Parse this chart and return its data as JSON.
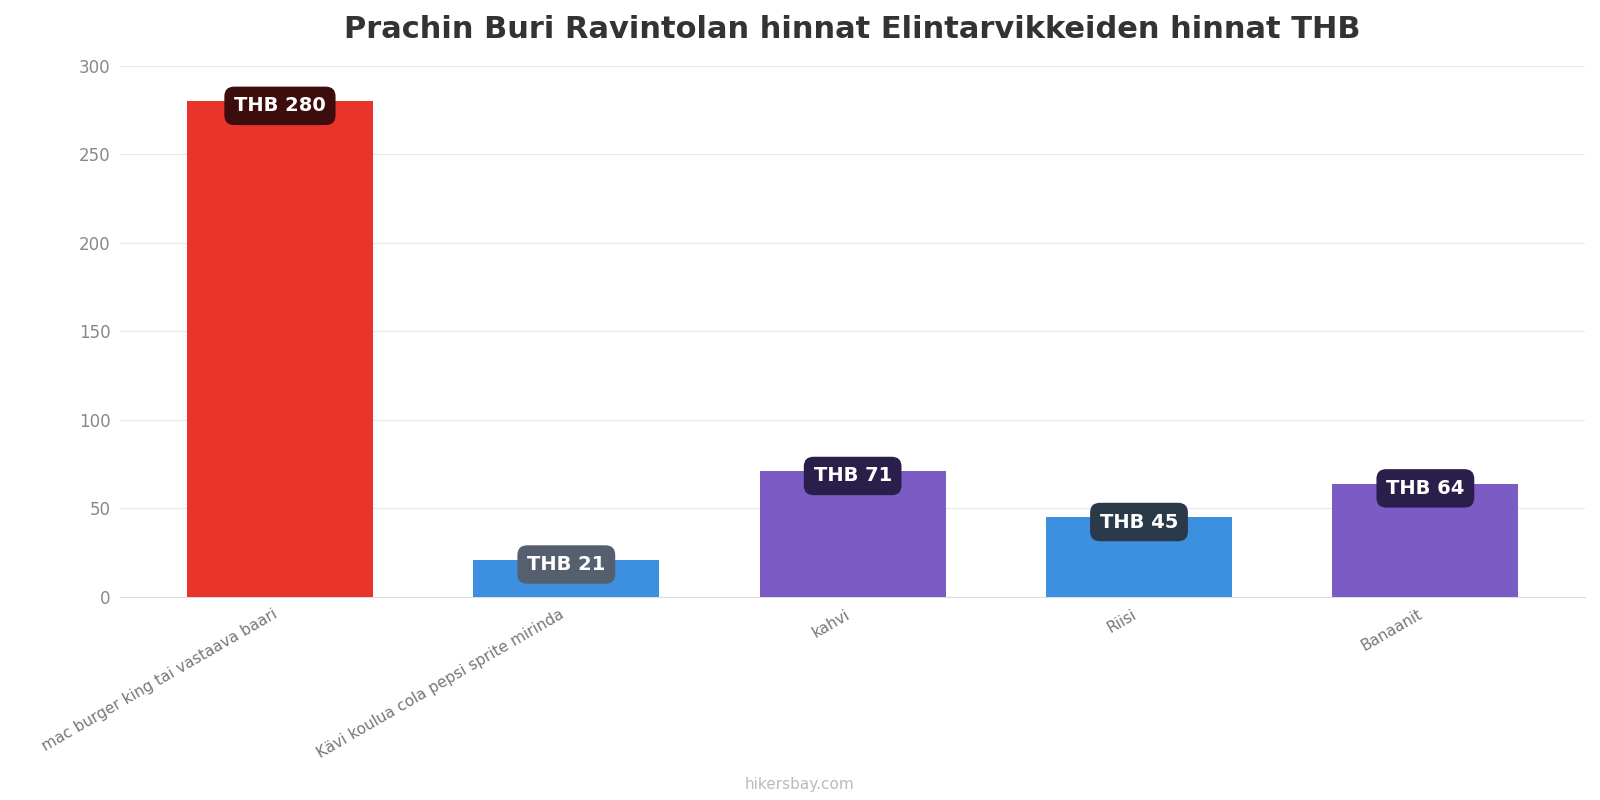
{
  "title": "Prachin Buri Ravintolan hinnat Elintarvikkeiden hinnat THB",
  "categories": [
    "mac burger king tai vastaava baari",
    "Kävi koulua cola pepsi sprite mirinda",
    "kahvi",
    "Riisi",
    "Banaanit"
  ],
  "values": [
    280,
    21,
    71,
    45,
    64
  ],
  "bar_colors": [
    "#e8342a",
    "#3d8fe0",
    "#7b5cc4",
    "#3d8fe0",
    "#7b5cc4"
  ],
  "label_box_colors": [
    "#3d0c0c",
    "#555f6d",
    "#2a1f4a",
    "#2a3a4a",
    "#2a1f4a"
  ],
  "label_texts": [
    "THB 280",
    "THB 21",
    "THB 71",
    "THB 45",
    "THB 64"
  ],
  "ylim": [
    0,
    300
  ],
  "yticks": [
    0,
    50,
    100,
    150,
    200,
    250,
    300
  ],
  "background_color": "#ffffff",
  "title_fontsize": 22,
  "watermark": "hikersbay.com",
  "bar_width": 0.65
}
